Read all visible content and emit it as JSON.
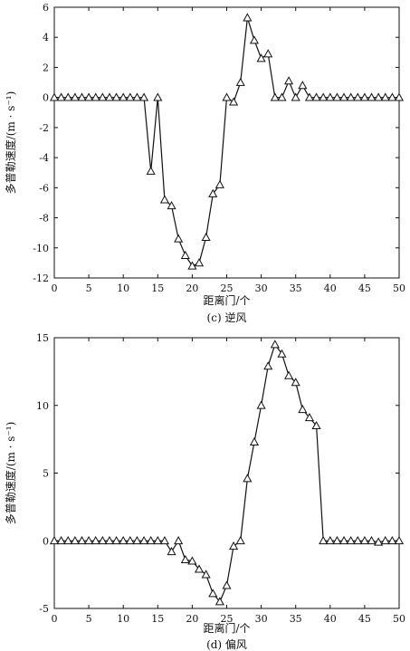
{
  "chart_data": [
    {
      "type": "line",
      "marker": "triangle",
      "caption": "(c) 逆风",
      "xlabel": "距离门/个",
      "ylabel": "多普勒速度/(m · s⁻¹)",
      "xlim": [
        0,
        50
      ],
      "ylim": [
        -12,
        6
      ],
      "xticks": [
        0,
        5,
        10,
        15,
        20,
        25,
        30,
        35,
        40,
        45,
        50
      ],
      "yticks": [
        -12,
        -10,
        -8,
        -6,
        -4,
        -2,
        0,
        2,
        4,
        6
      ],
      "x": [
        0,
        1,
        2,
        3,
        4,
        5,
        6,
        7,
        8,
        9,
        10,
        11,
        12,
        13,
        14,
        15,
        16,
        17,
        18,
        19,
        20,
        21,
        22,
        23,
        24,
        25,
        26,
        27,
        28,
        29,
        30,
        31,
        32,
        33,
        34,
        35,
        36,
        37,
        38,
        39,
        40,
        41,
        42,
        43,
        44,
        45,
        46,
        47,
        48,
        49,
        50
      ],
      "y": [
        0,
        0,
        0,
        0,
        0,
        0,
        0,
        0,
        0,
        0,
        0,
        0,
        0,
        0,
        -4.9,
        0,
        -6.8,
        -7.2,
        -9.4,
        -10.5,
        -11.2,
        -11.0,
        -9.3,
        -6.4,
        -5.8,
        0,
        -0.3,
        1.0,
        5.3,
        3.8,
        2.6,
        2.9,
        0,
        0,
        1.1,
        0,
        0.8,
        0,
        0,
        0,
        0,
        0,
        0,
        0,
        0,
        0,
        0,
        0,
        0,
        0,
        0
      ],
      "grid": false
    },
    {
      "type": "line",
      "marker": "triangle",
      "caption": "(d) 偏风",
      "xlabel": "距离门/个",
      "ylabel": "多普勒速度/(m · s⁻¹)",
      "xlim": [
        0,
        50
      ],
      "ylim": [
        -5,
        15
      ],
      "xticks": [
        0,
        5,
        10,
        15,
        20,
        25,
        30,
        35,
        40,
        45,
        50
      ],
      "yticks": [
        -5,
        0,
        5,
        10,
        15
      ],
      "x": [
        0,
        1,
        2,
        3,
        4,
        5,
        6,
        7,
        8,
        9,
        10,
        11,
        12,
        13,
        14,
        15,
        16,
        17,
        18,
        19,
        20,
        21,
        22,
        23,
        24,
        25,
        26,
        27,
        28,
        29,
        30,
        31,
        32,
        33,
        34,
        35,
        36,
        37,
        38,
        39,
        40,
        41,
        42,
        43,
        44,
        45,
        46,
        47,
        48,
        49,
        50
      ],
      "y": [
        0,
        0,
        0,
        0,
        0,
        0,
        0,
        0,
        0,
        0,
        0,
        0,
        0,
        0,
        0,
        0,
        0,
        -0.8,
        0,
        -1.4,
        -1.5,
        -2.1,
        -2.5,
        -3.9,
        -4.5,
        -3.3,
        -0.4,
        0,
        4.6,
        7.3,
        10.0,
        12.9,
        14.5,
        13.8,
        12.2,
        11.7,
        9.7,
        9.1,
        8.5,
        0,
        0,
        0,
        0,
        0,
        0,
        0,
        0,
        -0.1,
        0,
        0,
        0
      ],
      "grid": false
    }
  ]
}
